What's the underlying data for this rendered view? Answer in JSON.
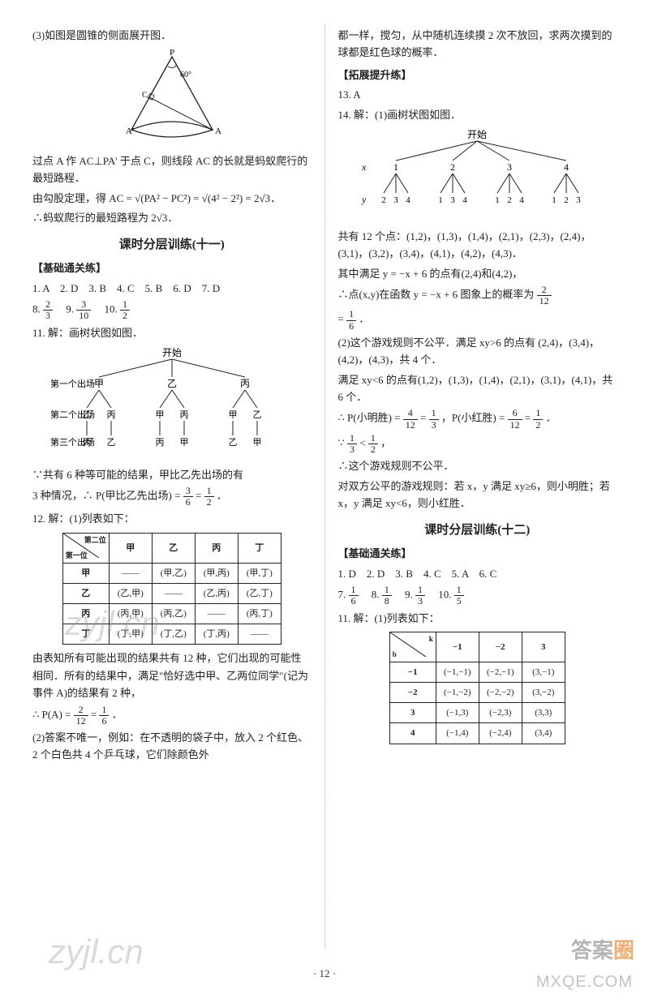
{
  "col_left": {
    "p1": "(3)如图是圆锥的侧面展开图．",
    "cone": {
      "apex": "P",
      "left": "A'",
      "right": "A",
      "foot": "C",
      "angle": "60°"
    },
    "p2": "过点 A 作 AC⊥PA' 于点 C，则线段 AC 的长就是蚂蚁爬行的最短路程．",
    "p3_a": "由勾股定理，得 AC = ",
    "p3_root1": "√(PA² − PC²)",
    "p3_eq": " = ",
    "p3_root2": "√(4² − 2²)",
    "p3_b": " = 2√3．",
    "p4": "∴蚂蚁爬行的最短路程为 2√3．",
    "title11": "课时分层训练(十一)",
    "sec_a": "【基础通关练】",
    "line1": "1. A　2. D　3. B　4. C　5. B　6. D　7. D",
    "q8_label": "8.",
    "q8_num": "2",
    "q8_den": "3",
    "q9_label": "9.",
    "q9_num": "3",
    "q9_den": "10",
    "q10_label": "10.",
    "q10_num": "1",
    "q10_den": "2",
    "q11a": "11. 解：画树状图如图．",
    "tree1": {
      "root": "开始",
      "row1_label": "第一个出场",
      "row1": [
        "甲",
        "乙",
        "丙"
      ],
      "row2_label": "第二个出场",
      "row2": [
        [
          "乙",
          "丙"
        ],
        [
          "甲",
          "丙"
        ],
        [
          "甲",
          "乙"
        ]
      ],
      "row3_label": "第三个出场",
      "row3": [
        [
          "丙",
          "乙"
        ],
        [
          "丙",
          "甲"
        ],
        [
          "乙",
          "甲"
        ]
      ]
    },
    "q11b": "∵共有 6 种等可能的结果，甲比乙先出场的有",
    "q11c_a": "3 种情况，∴ P(甲比乙先出场) = ",
    "q11c_f1_num": "3",
    "q11c_f1_den": "6",
    "q11c_eq": " = ",
    "q11c_f2_num": "1",
    "q11c_f2_den": "2",
    "q11c_end": "．",
    "q12a": "12. 解：(1)列表如下：",
    "table12": {
      "header_diag_top": "第二位",
      "header_diag_bottom": "第一位",
      "cols": [
        "甲",
        "乙",
        "丙",
        "丁"
      ],
      "rows": [
        {
          "h": "甲",
          "cells": [
            "——",
            "(甲,乙)",
            "(甲,丙)",
            "(甲,丁)"
          ]
        },
        {
          "h": "乙",
          "cells": [
            "(乙,甲)",
            "——",
            "(乙,丙)",
            "(乙,丁)"
          ]
        },
        {
          "h": "丙",
          "cells": [
            "(丙,甲)",
            "(丙,乙)",
            "——",
            "(丙,丁)"
          ]
        },
        {
          "h": "丁",
          "cells": [
            "(丁,甲)",
            "(丁,乙)",
            "(丁,丙)",
            "——"
          ]
        }
      ]
    },
    "q12b": "由表知所有可能出现的结果共有 12 种，它们出现的可能性相同．所有的结果中，满足\"恰好选中甲、乙两位同学\"(记为事件 A)的结果有 2 种，",
    "q12c_a": "∴ P(A) = ",
    "q12c_f1_num": "2",
    "q12c_f1_den": "12",
    "q12c_eq": " = ",
    "q12c_f2_num": "1",
    "q12c_f2_den": "6",
    "q12c_end": "．",
    "q12d": "(2)答案不唯一，例如：在不透明的袋子中，放入 2 个红色、2 个白色共 4 个乒乓球，它们除颜色外"
  },
  "col_right": {
    "p1": "都一样，搅匀，从中随机连续摸 2 次不放回，求两次摸到的球都是红色球的概率．",
    "sec_b": "【拓展提升练】",
    "l13": "13. A",
    "l14": "14. 解：(1)画树状图如图．",
    "tree2": {
      "root": "开始",
      "x_label": "x",
      "y_label": "y",
      "x": [
        "1",
        "2",
        "3",
        "4"
      ],
      "y": [
        [
          "2",
          "3",
          "4"
        ],
        [
          "1",
          "3",
          "4"
        ],
        [
          "1",
          "2",
          "4"
        ],
        [
          "1",
          "2",
          "3"
        ]
      ]
    },
    "p2": "共有 12 个点：(1,2)，(1,3)，(1,4)，(2,1)，(2,3)，(2,4)，(3,1)，(3,2)，(3,4)，(4,1)，(4,2)，(4,3)．",
    "p3": "其中满足 y = −x + 6 的点有(2,4)和(4,2)，",
    "p4_a": "∴点(x,y)在函数 y = −x + 6 图象上的概率为 ",
    "p4_f1_num": "2",
    "p4_f1_den": "12",
    "p4_b": "= ",
    "p4_f2_num": "1",
    "p4_f2_den": "6",
    "p4_end": "．",
    "p5": "(2)这个游戏规则不公平．满足 xy>6 的点有 (2,4)，(3,4)，(4,2)，(4,3)，共 4 个．",
    "p6": "满足 xy<6 的点有(1,2)，(1,3)，(1,4)，(2,1)，(3,1)，(4,1)，共 6 个．",
    "p7_a": "∴ P(小明胜) = ",
    "p7_f1_num": "4",
    "p7_f1_den": "12",
    "p7_eq1": " = ",
    "p7_f2_num": "1",
    "p7_f2_den": "3",
    "p7_mid": "，P(小红胜) = ",
    "p7_f3_num": "6",
    "p7_f3_den": "12",
    "p7_eq2": " = ",
    "p7_f4_num": "1",
    "p7_f4_den": "2",
    "p7_end": "．",
    "p8_a": "∵ ",
    "p8_f1_num": "1",
    "p8_f1_den": "3",
    "p8_lt": " < ",
    "p8_f2_num": "1",
    "p8_f2_den": "2",
    "p8_end": "，",
    "p9": "∴这个游戏规则不公平．",
    "p10": "对双方公平的游戏规则：若 x，y 满足 xy≥6，则小明胜；若 x，y 满足 xy<6，则小红胜．",
    "title12": "课时分层训练(十二)",
    "sec_c": "【基础通关练】",
    "lineR": "1. D　2. D　3. B　4. C　5. A　6. C",
    "q7_label": "7.",
    "q7_num": "1",
    "q7_den": "6",
    "q8_label": "8.",
    "q8_num": "1",
    "q8_den": "8",
    "q9_label": "9.",
    "q9_num": "1",
    "q9_den": "3",
    "q10_label": "10.",
    "q10_num": "1",
    "q10_den": "5",
    "q11": "11. 解：(1)列表如下：",
    "tableR": {
      "header_diag_top": "k",
      "header_diag_bottom": "b",
      "cols": [
        "−1",
        "−2",
        "3"
      ],
      "rows": [
        {
          "h": "−1",
          "cells": [
            "(−1,−1)",
            "(−2,−1)",
            "(3,−1)"
          ]
        },
        {
          "h": "−2",
          "cells": [
            "(−1,−2)",
            "(−2,−2)",
            "(3,−2)"
          ]
        },
        {
          "h": "3",
          "cells": [
            "(−1,3)",
            "(−2,3)",
            "(3,3)"
          ]
        },
        {
          "h": "4",
          "cells": [
            "(−1,4)",
            "(−2,4)",
            "(3,4)"
          ]
        }
      ]
    }
  },
  "page_number": "· 12 ·",
  "wm1": "zyjl.cn",
  "wm2": "zyjl.cn",
  "brand_a": "答案",
  "brand_b": "圈",
  "footer_wm": "MXQE.COM"
}
